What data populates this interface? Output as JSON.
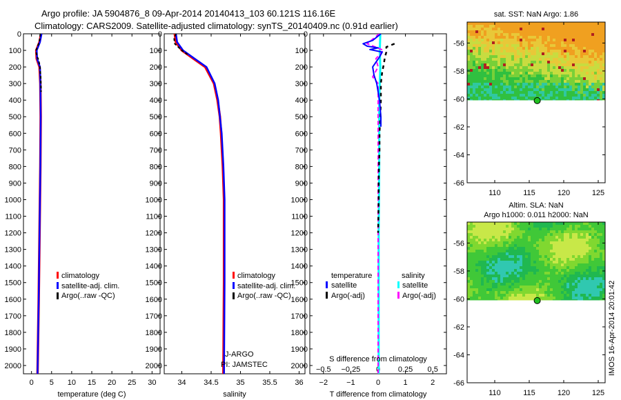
{
  "header": {
    "title_line1": "Argo profile: JA 5904876_8 09-Apr-2014 20140413_103 60.121S 116.16E",
    "title_line2": "Climatology: CARS2009. Satellite-adjusted climatology: synTS_20140409.nc (0.91d earlier)"
  },
  "colors": {
    "climatology": "#ff0000",
    "satellite": "#0000ff",
    "argo": "#000000",
    "satellite_s": "#00ffff",
    "argo_s": "#ff00ff"
  },
  "chart_data": [
    {
      "type": "line",
      "id": "temperature",
      "xlabel": "temperature (deg C)",
      "ylabel": "",
      "xlim": [
        -2,
        32
      ],
      "ylim": [
        2050,
        0
      ],
      "xticks": [
        0,
        5,
        10,
        15,
        20,
        25,
        30
      ],
      "xtick_labels": [
        "0",
        "5",
        "10",
        "15",
        "20",
        "25",
        "30"
      ],
      "yticks": [
        0,
        100,
        200,
        300,
        400,
        500,
        600,
        700,
        800,
        900,
        1000,
        1100,
        1200,
        1300,
        1400,
        1500,
        1600,
        1700,
        1800,
        1900,
        2000
      ],
      "ytick_labels": [
        "0",
        "100",
        "200",
        "300",
        "400",
        "500",
        "600",
        "700",
        "800",
        "900",
        "1000",
        "1100",
        "1200",
        "1300",
        "1400",
        "1500",
        "1600",
        "1700",
        "1800",
        "1900",
        "2000"
      ],
      "legend": [
        "climatology",
        "satellite-adj. clim.",
        "Argo(..raw -QC)"
      ],
      "series": [
        {
          "name": "climatology",
          "depth": [
            0,
            50,
            100,
            150,
            200,
            300,
            500,
            800,
            1200,
            1600,
            2050
          ],
          "values": [
            2.4,
            2.0,
            1.2,
            1.3,
            2.0,
            2.2,
            2.3,
            2.2,
            2.0,
            1.8,
            1.5
          ]
        },
        {
          "name": "satellite-adj. clim.",
          "depth": [
            0,
            50,
            100,
            150,
            200,
            300,
            500,
            800,
            1200,
            1600,
            2050
          ],
          "values": [
            2.5,
            2.1,
            1.3,
            1.4,
            2.1,
            2.2,
            2.3,
            2.2,
            2.0,
            1.8,
            1.5
          ]
        },
        {
          "name": "Argo(..raw -QC)",
          "depth": [
            0,
            40,
            80,
            100,
            130,
            160,
            200,
            260,
            350
          ],
          "values": [
            2.2,
            2.0,
            1.5,
            1.1,
            1.3,
            1.8,
            2.1,
            2.3,
            2.4
          ]
        }
      ]
    },
    {
      "type": "line",
      "id": "salinity",
      "xlabel": "salinity",
      "xlim": [
        33.7,
        36.1
      ],
      "ylim": [
        2050,
        0
      ],
      "xticks": [
        34,
        34.5,
        35,
        35.5,
        36
      ],
      "xtick_labels": [
        "34",
        "34.5",
        "35",
        "35.5",
        "36"
      ],
      "legend": [
        "climatology",
        "satellite-adj. clim.",
        "Argo(..raw -QC)"
      ],
      "annotation_line1": "J-ARGO",
      "annotation_line2": "PI: JAMSTEC",
      "series": [
        {
          "name": "climatology",
          "depth": [
            0,
            50,
            100,
            150,
            200,
            300,
            400,
            500,
            600,
            800,
            1000,
            1500,
            2050
          ],
          "values": [
            33.88,
            33.9,
            34.0,
            34.2,
            34.4,
            34.55,
            34.61,
            34.65,
            34.67,
            34.7,
            34.72,
            34.72,
            34.71
          ]
        },
        {
          "name": "satellite-adj. clim.",
          "depth": [
            0,
            50,
            100,
            150,
            200,
            300,
            400,
            500,
            600,
            800,
            1000,
            1500,
            2050
          ],
          "values": [
            33.9,
            33.92,
            34.02,
            34.22,
            34.42,
            34.56,
            34.62,
            34.65,
            34.68,
            34.71,
            34.73,
            34.73,
            34.72
          ]
        },
        {
          "name": "Argo(..raw -QC)",
          "depth": [
            0,
            30,
            60,
            100,
            130
          ],
          "values": [
            33.9,
            33.87,
            33.88,
            34.0,
            34.12
          ]
        }
      ]
    },
    {
      "type": "line",
      "id": "difference",
      "xlabel": "T difference from climatology",
      "xlabel_top": "S difference from climatology",
      "xlim": [
        -2.5,
        2.5
      ],
      "ylim": [
        2050,
        0
      ],
      "xticks": [
        -2,
        -1,
        0,
        1,
        2
      ],
      "xtick_labels": [
        "−2",
        "−1",
        "0",
        "1",
        "2"
      ],
      "xticks_s": [
        -0.5,
        -0.25,
        0,
        0.25,
        0.5
      ],
      "xtick_labels_s": [
        "−0.5",
        "−0.25",
        "0",
        "0.25",
        "0.5"
      ],
      "legend_header_t": "temperature",
      "legend_header_s": "salinity",
      "legend_t": [
        "satellite",
        "Argo(-adj)"
      ],
      "legend_s": [
        "satellite",
        "Argo(-adj)"
      ],
      "series": [
        {
          "name": "T satellite",
          "depth": [
            0,
            40,
            60,
            75,
            85,
            95,
            110,
            140,
            200,
            250,
            300,
            400,
            500,
            560
          ],
          "values": [
            0.1,
            -0.2,
            -0.55,
            -0.4,
            0.0,
            -0.3,
            0.15,
            0.05,
            -0.2,
            -0.15,
            -0.05,
            0.05,
            0.1,
            0.1
          ]
        },
        {
          "name": "T Argo(-adj)",
          "depth": [
            60,
            80,
            110,
            140,
            190,
            230,
            300,
            400,
            500,
            600,
            700,
            800,
            900,
            1000,
            1100,
            1200
          ],
          "values": [
            0.6,
            0.3,
            0.3,
            0.25,
            0.2,
            0.15,
            0.1,
            0.1,
            0.08,
            0.05,
            0.05,
            0.03,
            0.02,
            0.02,
            0.01,
            0.0
          ]
        },
        {
          "name": "S satellite",
          "depth": [
            0,
            100,
            200,
            400,
            800,
            1200,
            1600,
            2050
          ],
          "values": [
            0.02,
            0.015,
            0.02,
            0.01,
            0.01,
            0.005,
            0.005,
            0.005
          ]
        },
        {
          "name": "S Argo(-adj)",
          "depth": [
            0,
            60,
            100,
            150,
            200,
            260,
            300,
            400,
            700,
            1000,
            1400,
            2050
          ],
          "values": [
            0.01,
            -0.1,
            0.05,
            -0.02,
            0.0,
            -0.05,
            0.0,
            0.0,
            0.0,
            0.0,
            0.0,
            0.0
          ]
        }
      ]
    },
    {
      "type": "heatmap",
      "id": "sst_map",
      "title": "sat. SST: NaN Argo: 1.86",
      "xlim": [
        106,
        126
      ],
      "ylim": [
        -66,
        -54.5
      ],
      "xticks": [
        110,
        115,
        120,
        125
      ],
      "xtick_labels": [
        "110",
        "115",
        "120",
        "125"
      ],
      "yticks": [
        -56,
        -58,
        -60,
        -62,
        -64,
        -66
      ],
      "ytick_labels": [
        "-56",
        "-58",
        "-60",
        "-62",
        "-64",
        "-66"
      ],
      "data_lat_min": -60.1,
      "argo_position": [
        116.16,
        -60.121
      ]
    },
    {
      "type": "heatmap",
      "id": "sla_map",
      "title_line1": "Altim. SLA: NaN",
      "title_line2": "Argo h1000: 0.011 h2000: NaN",
      "xlim": [
        106,
        126
      ],
      "ylim": [
        -66,
        -54.5
      ],
      "xticks": [
        110,
        115,
        120,
        125
      ],
      "xtick_labels": [
        "110",
        "115",
        "120",
        "125"
      ],
      "yticks": [
        -56,
        -58,
        -60,
        -62,
        -64,
        -66
      ],
      "ytick_labels": [
        "-56",
        "-58",
        "-60",
        "-62",
        "-64",
        "-66"
      ],
      "data_lat_min": -60.1,
      "argo_position": [
        116.16,
        -60.121
      ]
    }
  ],
  "footer": {
    "stamp": "IMOS 16-Apr-2014 20:01:42"
  }
}
